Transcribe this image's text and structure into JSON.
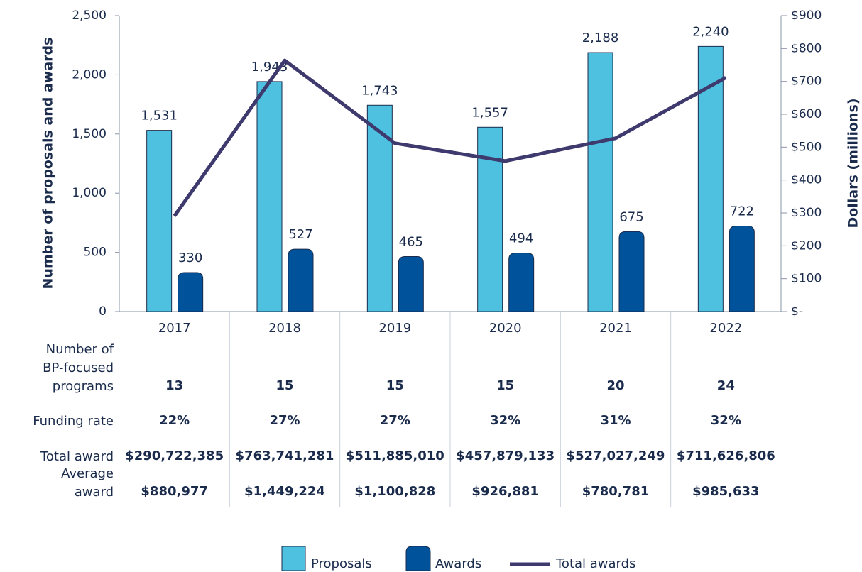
{
  "chart_data": {
    "type": "bar",
    "ylabel": "Number of proposals and awards",
    "y2label": "Dollars (millions)",
    "categories": [
      "2017",
      "2018",
      "2019",
      "2020",
      "2021",
      "2022"
    ],
    "series": [
      {
        "name": "Proposals",
        "color": "#4dc1df",
        "values": [
          1531,
          1943,
          1743,
          1557,
          2188,
          2240
        ],
        "value_labels": [
          "1,531",
          "1,943",
          "1,743",
          "1,557",
          "2,188",
          "2,240"
        ]
      },
      {
        "name": "Awards",
        "color": "#00539b",
        "values": [
          330,
          527,
          465,
          494,
          675,
          722
        ]
      },
      {
        "name": "Total awards",
        "color": "#3e3a6e",
        "type": "line",
        "axis": "y2",
        "values": [
          290.722385,
          763.741281,
          511.88501,
          457.879133,
          527.027249,
          711.626806
        ]
      }
    ],
    "ylim": [
      0,
      2500
    ],
    "yticks": [
      0,
      500,
      {
        "value": 1000,
        "label": "1,000"
      },
      {
        "value": 1500,
        "label": "1,500"
      },
      {
        "value": 2000,
        "label": "2,000"
      },
      {
        "value": 2500,
        "label": "2,500"
      }
    ],
    "y2lim": [
      0,
      900
    ],
    "y2ticks": [
      {
        "value": 0,
        "label": "$-"
      },
      {
        "value": 100,
        "label": "$100"
      },
      {
        "value": 200,
        "label": "$200"
      },
      {
        "value": 300,
        "label": "$300"
      },
      {
        "value": 400,
        "label": "$400"
      },
      {
        "value": 500,
        "label": "$500"
      },
      {
        "value": 600,
        "label": "$600"
      },
      {
        "value": 700,
        "label": "$700"
      },
      {
        "value": 800,
        "label": "$800"
      },
      {
        "value": 900,
        "label": "$900"
      }
    ],
    "legend": "bottom"
  },
  "table": {
    "rows": [
      {
        "label": "Number of BP-focused programs",
        "values": [
          "13",
          "15",
          "15",
          "15",
          "20",
          "24"
        ]
      },
      {
        "label": "Funding rate",
        "values": [
          "22%",
          "27%",
          "27%",
          "32%",
          "31%",
          "32%"
        ]
      },
      {
        "label": "Total award",
        "values": [
          "$290,722,385",
          "$763,741,281",
          "$511,885,010",
          "$457,879,133",
          "$527,027,249",
          "$711,626,806"
        ]
      },
      {
        "label": "Average award",
        "values": [
          "$880,977",
          "$1,449,224",
          "$1,100,828",
          "$926,881",
          "$780,781",
          "$985,633"
        ]
      }
    ]
  }
}
